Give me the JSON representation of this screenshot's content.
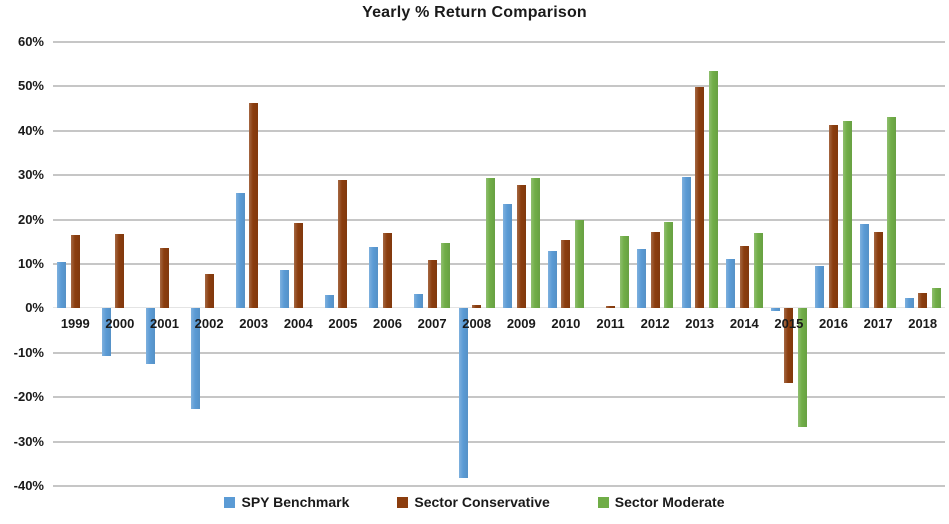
{
  "chart_data": {
    "type": "bar",
    "title": "Yearly % Return Comparison",
    "categories": [
      "1999",
      "2000",
      "2001",
      "2002",
      "2003",
      "2004",
      "2005",
      "2006",
      "2007",
      "2008",
      "2009",
      "2010",
      "2011",
      "2012",
      "2013",
      "2014",
      "2015",
      "2016",
      "2017",
      "2018"
    ],
    "series": [
      {
        "name": "SPY Benchmark",
        "color": "#5B9BD5",
        "values": [
          10.5,
          -10.7,
          -12.6,
          -22.7,
          26.0,
          8.6,
          3.0,
          13.8,
          3.2,
          -38.2,
          23.6,
          13.0,
          0,
          13.4,
          29.6,
          11.2,
          -0.7,
          9.5,
          19.1,
          2.4
        ]
      },
      {
        "name": "Sector Conservative",
        "color": "#8B3D0E",
        "values": [
          16.5,
          16.8,
          13.6,
          7.8,
          46.3,
          19.2,
          28.9,
          16.9,
          10.8,
          0.8,
          27.9,
          15.4,
          0.6,
          17.1,
          49.8,
          14.1,
          -16.9,
          41.2,
          17.1,
          3.4
        ]
      },
      {
        "name": "Sector Moderate",
        "color": "#70AD47",
        "values": [
          0,
          0,
          0,
          0,
          0,
          0,
          0,
          0,
          14.7,
          29.3,
          29.3,
          19.8,
          16.4,
          19.4,
          53.4,
          16.9,
          -26.8,
          42.2,
          43.2,
          4.7
        ]
      }
    ],
    "ylim": [
      -40,
      60
    ],
    "yticks": [
      60,
      50,
      40,
      30,
      20,
      10,
      0,
      -10,
      -20,
      -30,
      -40
    ],
    "ytick_suffix": "%",
    "grid": true,
    "legend_position": "bottom",
    "gridline_color": "#C6C6C6",
    "background_color": "#FFFFFF"
  }
}
